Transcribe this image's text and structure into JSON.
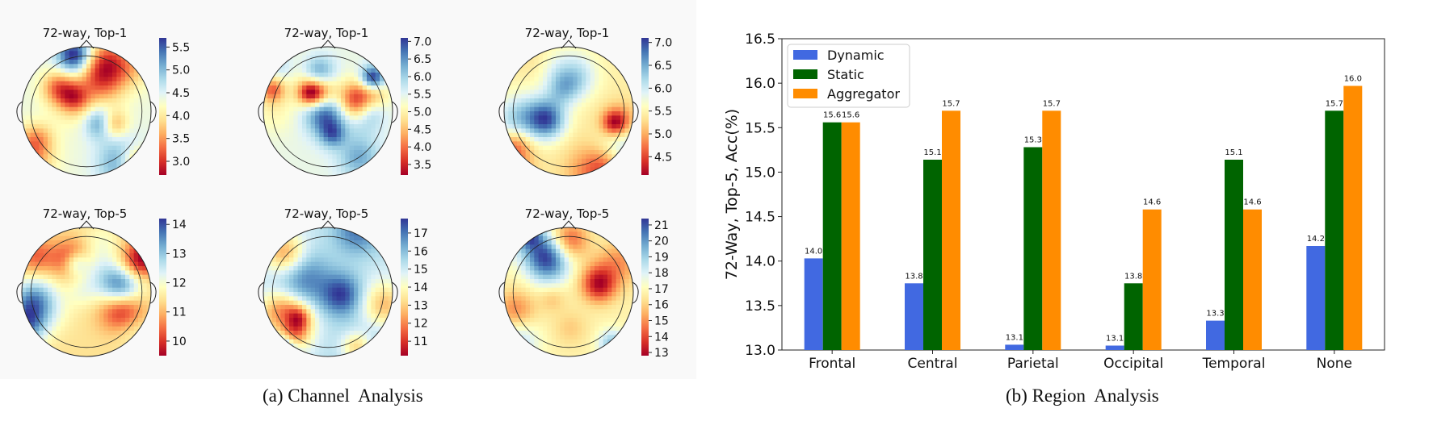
{
  "captions": {
    "a": "(a) Channel  Analysis",
    "b": "(b) Region  Analysis"
  },
  "colors": {
    "dynamic": "#4169e1",
    "static": "#006400",
    "aggregator": "#ff8c00",
    "colormap": "RdYlBu"
  },
  "chart_data": [
    {
      "type": "heatmap",
      "title": "72-way, Top-1",
      "colorbar_ticks": [
        "5.5",
        "5.0",
        "4.5",
        "4.0",
        "3.5",
        "3.0"
      ],
      "range": [
        2.7,
        5.7
      ]
    },
    {
      "type": "heatmap",
      "title": "72-way, Top-1",
      "colorbar_ticks": [
        "7.0",
        "6.5",
        "6.0",
        "5.5",
        "5.0",
        "4.5",
        "4.0",
        "3.5"
      ],
      "range": [
        3.2,
        7.1
      ]
    },
    {
      "type": "heatmap",
      "title": "72-way, Top-1",
      "colorbar_ticks": [
        "7.0",
        "6.5",
        "6.0",
        "5.5",
        "5.0",
        "4.5"
      ],
      "range": [
        4.1,
        7.1
      ]
    },
    {
      "type": "heatmap",
      "title": "72-way, Top-5",
      "colorbar_ticks": [
        "14",
        "13",
        "12",
        "11",
        "10"
      ],
      "range": [
        9.5,
        14.2
      ]
    },
    {
      "type": "heatmap",
      "title": "72-way, Top-5",
      "colorbar_ticks": [
        "17",
        "16",
        "15",
        "14",
        "13",
        "12",
        "11"
      ],
      "range": [
        10.2,
        17.8
      ]
    },
    {
      "type": "heatmap",
      "title": "72-way, Top-5",
      "colorbar_ticks": [
        "21",
        "20",
        "19",
        "18",
        "17",
        "16",
        "15",
        "14",
        "13"
      ],
      "range": [
        12.8,
        21.4
      ]
    },
    {
      "type": "bar",
      "categories": [
        "Frontal",
        "Central",
        "Parietal",
        "Occipital",
        "Temporal",
        "None"
      ],
      "series": [
        {
          "name": "Dynamic",
          "values": [
            14.03,
            13.75,
            13.06,
            13.05,
            13.33,
            14.17
          ],
          "labels": [
            "14.0",
            "13.8",
            "13.1",
            "13.1",
            "13.3",
            "14.2"
          ]
        },
        {
          "name": "Static",
          "values": [
            15.56,
            15.14,
            15.28,
            13.75,
            15.14,
            15.69
          ],
          "labels": [
            "15.6",
            "15.1",
            "15.3",
            "13.8",
            "15.1",
            "15.7"
          ]
        },
        {
          "name": "Aggregator",
          "values": [
            15.56,
            15.69,
            15.69,
            14.58,
            14.58,
            15.97
          ],
          "labels": [
            "15.6",
            "15.7",
            "15.7",
            "14.6",
            "14.6",
            "16.0"
          ]
        }
      ],
      "ylabel": "72-Way, Top-5, Acc(%)",
      "ylim": [
        13.0,
        16.5
      ],
      "yticks": [
        "13.0",
        "13.5",
        "14.0",
        "14.5",
        "15.0",
        "15.5",
        "16.0",
        "16.5"
      ],
      "legend": "top-left",
      "grid": false
    }
  ]
}
